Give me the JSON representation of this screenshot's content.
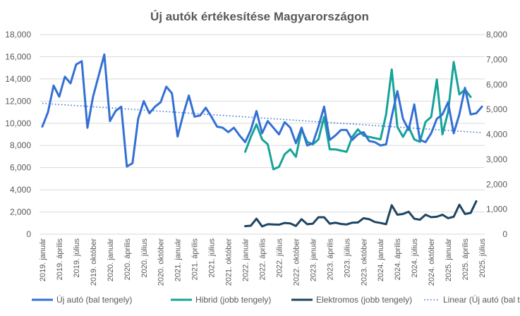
{
  "chart_data": {
    "type": "line",
    "title": "Új autók értékesítése Magyarországon",
    "x_tick_labels": [
      "2019. január",
      "2019. április",
      "2019. július",
      "2019. október",
      "2020. január",
      "2020. április",
      "2020. július",
      "2020. október",
      "2021. január",
      "2021. április",
      "2021. július",
      "2021. október",
      "2022. január",
      "2022. április",
      "2022. július",
      "2022. október",
      "2023. január",
      "2023. április",
      "2023. július",
      "2023. október",
      "2024. január",
      "2024. április",
      "2024. július",
      "2024. október",
      "2025. január",
      "2025. április",
      "2025. július"
    ],
    "y_left": {
      "min": 0,
      "max": 18000,
      "step": 2000,
      "tick_labels": [
        "0",
        "2,000",
        "4,000",
        "6,000",
        "8,000",
        "10,000",
        "12,000",
        "14,000",
        "16,000",
        "18,000"
      ]
    },
    "y_right": {
      "min": 0,
      "max": 8000,
      "step": 1000,
      "tick_labels": [
        "0",
        "1,000",
        "2,000",
        "3,000",
        "4,000",
        "5,000",
        "6,000",
        "7,000",
        "8,000"
      ]
    },
    "grid": true,
    "legend_position": "bottom",
    "series": [
      {
        "name": "Új autó (bal tengely)",
        "axis": "left",
        "color": "#3370D4",
        "start_index": 0,
        "values": [
          9700,
          11000,
          13400,
          12400,
          14200,
          13600,
          15300,
          15600,
          9600,
          12400,
          14300,
          16200,
          10200,
          11100,
          11500,
          6100,
          6400,
          10400,
          12000,
          10900,
          11500,
          11900,
          13300,
          12700,
          8800,
          10800,
          12500,
          10600,
          10700,
          11400,
          10600,
          9700,
          9600,
          9200,
          9600,
          8900,
          8300,
          9400,
          11100,
          9100,
          10200,
          9600,
          9000,
          10100,
          9600,
          8200,
          9600,
          8000,
          8200,
          9700,
          11500,
          8500,
          8900,
          9400,
          9400,
          8500,
          9000,
          9200,
          8400,
          8300,
          8000,
          8100,
          10600,
          12900,
          10400,
          9400,
          11700,
          8500,
          8300,
          9100,
          10400,
          10800,
          11900,
          9100,
          10800,
          13200,
          10800,
          10900,
          11500
        ],
        "markers_note": ""
      },
      {
        "name": "Hibrid (jobb tengely)",
        "axis": "right",
        "color": "#16A399",
        "start_index": 36,
        "values": [
          3300,
          3900,
          4400,
          3800,
          3600,
          2600,
          2700,
          3200,
          3400,
          3100,
          4200,
          3700,
          3600,
          3800,
          4700,
          3400,
          3400,
          3350,
          3300,
          3900,
          4200,
          3950,
          3900,
          3850,
          3800,
          4800,
          6600,
          4300,
          3900,
          4300,
          3800,
          3700,
          4500,
          4700,
          6200,
          4000,
          4900,
          6900,
          5600,
          5800,
          5500
        ]
      },
      {
        "name": "Elektromos (jobb tengely)",
        "axis": "right",
        "color": "#1E4561",
        "start_index": 36,
        "values": [
          320,
          340,
          620,
          310,
          400,
          390,
          380,
          450,
          430,
          330,
          600,
          400,
          420,
          680,
          680,
          420,
          460,
          410,
          390,
          460,
          470,
          640,
          600,
          490,
          450,
          400,
          1160,
          780,
          810,
          900,
          620,
          580,
          780,
          680,
          700,
          780,
          640,
          700,
          1180,
          810,
          850,
          1320
        ]
      },
      {
        "name": "Linear (Új autó (bal tengely))",
        "axis": "left",
        "color": "#3370D4",
        "style": "dotted",
        "start_index": 0,
        "values_endpoints": [
          11800,
          9150
        ]
      }
    ]
  }
}
